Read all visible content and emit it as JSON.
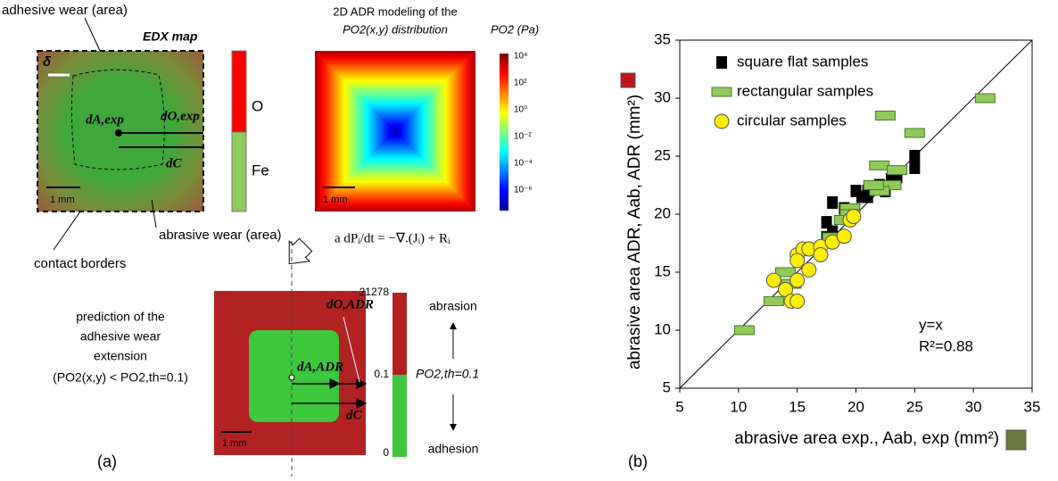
{
  "diagram": {
    "edx_top_label": "adhesive wear (area)",
    "edx_title": "EDX map",
    "delta": "δ",
    "d_a_exp": "dA,exp",
    "d_o_exp": "dO,exp",
    "d_c": "dC",
    "scale_1": "1 mm",
    "bar_o": "O",
    "bar_fe": "Fe",
    "abrasive_label": "abrasive wear (area)",
    "contact_label": "contact borders",
    "adr_title_1": "2D ADR modeling of the",
    "adr_title_2": "PO2(x,y) distribution",
    "cbar_title": "PO2 (Pa)",
    "cbar_ticks": [
      "10⁴",
      "10²",
      "10⁰",
      "10⁻²",
      "10⁻⁴",
      "10⁻⁶"
    ],
    "scale_2": "1 mm",
    "equation": "a dPᵢ/dt = −∇.(Jᵢ) + Rᵢ",
    "pred_1": "prediction of the",
    "pred_2": "adhesive wear",
    "pred_3": "extension",
    "pred_4": "(PO2(x,y) < PO2,th=0.1)",
    "d_o_adr": "dO,ADR",
    "d_a_adr": "dA,ADR",
    "d_c2": "dC",
    "scale_3": "1 mm",
    "bar_top": "21278",
    "bar_mid": "0.1",
    "bar_bot": "0",
    "threshold": "PO2,th=0.1",
    "abrasion": "abrasion",
    "adhesion": "adhesion",
    "panel_a": "(a)"
  },
  "chart_data": {
    "type": "scatter",
    "panel": "(b)",
    "x_label": "abrasive area exp.,   Aab, exp  (mm²)",
    "y_label": "abrasive area ADR,  Aab, ADR  (mm²)",
    "xlim": [
      5,
      35
    ],
    "ylim": [
      5,
      35
    ],
    "xticks": [
      5,
      10,
      15,
      20,
      25,
      30,
      35
    ],
    "yticks": [
      5,
      10,
      15,
      20,
      25,
      30,
      35
    ],
    "legend": "upper left",
    "annotations": [
      "y=x",
      "R²=0.88"
    ],
    "series": [
      {
        "name": "square flat samples",
        "color": "#000000",
        "marker": "square",
        "x": [
          25,
          25,
          23,
          23.5,
          22,
          21,
          20.5,
          20,
          18,
          17.5,
          18,
          17.5,
          21,
          22.5,
          19
        ],
        "y": [
          24,
          25,
          23,
          23.2,
          22.5,
          22,
          21.5,
          22,
          21,
          19.3,
          18.5,
          18,
          21.5,
          22,
          20.5
        ]
      },
      {
        "name": "rectangular samples",
        "color": "#8fca5a",
        "marker": "rect",
        "x": [
          31,
          22.5,
          25,
          22,
          23.5,
          23,
          22,
          21.5,
          19.5,
          19.5,
          14,
          13,
          10.5,
          19,
          18,
          14.5
        ],
        "y": [
          30,
          28.5,
          27,
          24.2,
          23.8,
          22.5,
          22,
          22.5,
          20.5,
          20,
          15,
          12.5,
          10,
          19.5,
          18,
          14
        ]
      },
      {
        "name": "circular samples",
        "color": "#ffee00",
        "marker": "circle",
        "x": [
          15,
          15.5,
          16,
          17,
          18,
          19,
          19.5,
          19.8,
          17,
          16,
          15,
          13,
          14,
          14.5,
          15,
          15
        ],
        "y": [
          16.5,
          17,
          17,
          17.2,
          17.6,
          18.1,
          19.5,
          19.8,
          16.5,
          15.2,
          14.3,
          14.3,
          13.5,
          12.5,
          12.5,
          16
        ]
      }
    ]
  }
}
